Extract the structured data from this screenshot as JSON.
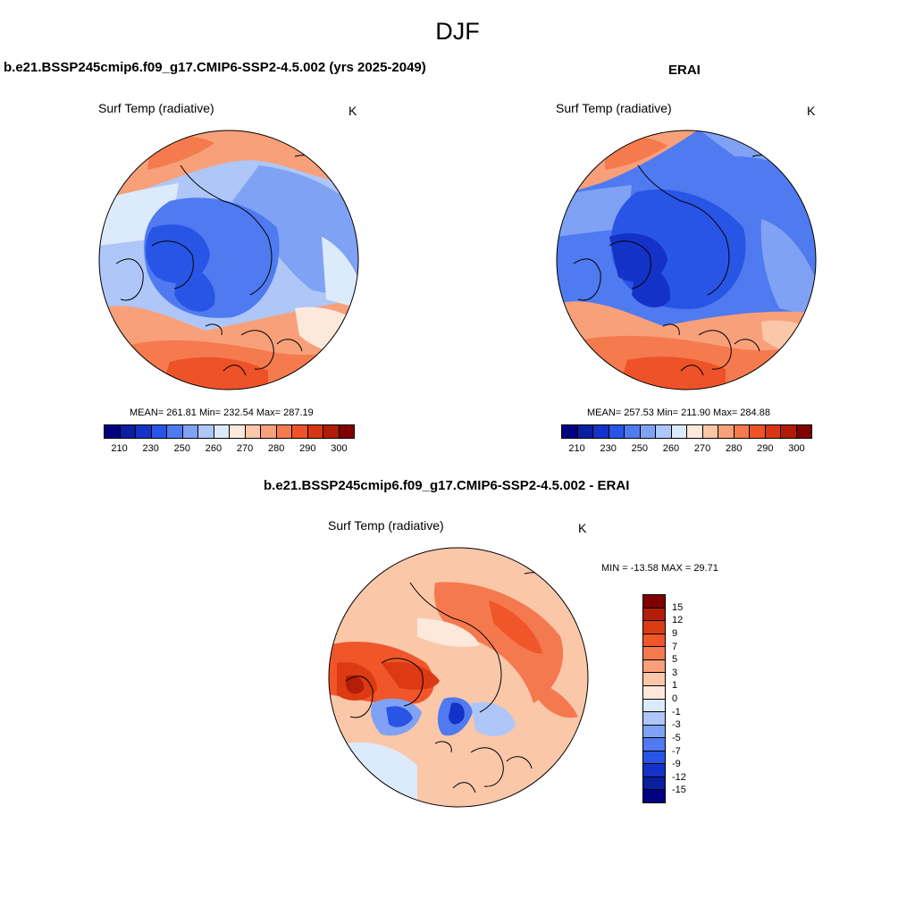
{
  "figure": {
    "title": "DJF"
  },
  "panels": {
    "model": {
      "title": "b.e21.BSSP245cmip6.f09_g17.CMIP6-SSP2-4.5.002 (yrs 2025-2049)",
      "variable": "Surf Temp (radiative)",
      "units": "K",
      "stats": "MEAN= 261.81  Min= 232.54  Max= 287.19"
    },
    "obs": {
      "title": "ERAI",
      "variable": "Surf Temp (radiative)",
      "units": "K",
      "stats": "MEAN= 257.53  Min= 211.90  Max= 284.88"
    },
    "diff": {
      "title": "b.e21.BSSP245cmip6.f09_g17.CMIP6-SSP2-4.5.002 - ERAI",
      "variable": "Surf Temp (radiative)",
      "units": "K",
      "stats": "MIN = -13.58 MAX =  29.71"
    }
  },
  "colorbars": {
    "absolute": {
      "colors": [
        "#000080",
        "#0a1ea0",
        "#1432c8",
        "#2855e6",
        "#4f7af0",
        "#7fa2f4",
        "#aec7f8",
        "#dcebfb",
        "#fde9dc",
        "#fbc7a9",
        "#f8a07a",
        "#f57a4e",
        "#ee5228",
        "#d73614",
        "#b01c08",
        "#800000"
      ],
      "labels": [
        "210",
        "230",
        "250",
        "260",
        "270",
        "280",
        "290",
        "300"
      ]
    },
    "difference": {
      "colors": [
        "#800000",
        "#b41e08",
        "#dc3a12",
        "#f0562a",
        "#f5794e",
        "#f8a07a",
        "#fbc7a9",
        "#fde9dc",
        "#dcebfb",
        "#aec7f8",
        "#7fa2f4",
        "#4f7af0",
        "#2855e6",
        "#1432c8",
        "#0a1ea0",
        "#000080"
      ],
      "labels": [
        "15",
        "12",
        "9",
        "7",
        "5",
        "3",
        "1",
        "0",
        "-1",
        "-3",
        "-5",
        "-7",
        "-9",
        "-12",
        "-15"
      ]
    }
  }
}
